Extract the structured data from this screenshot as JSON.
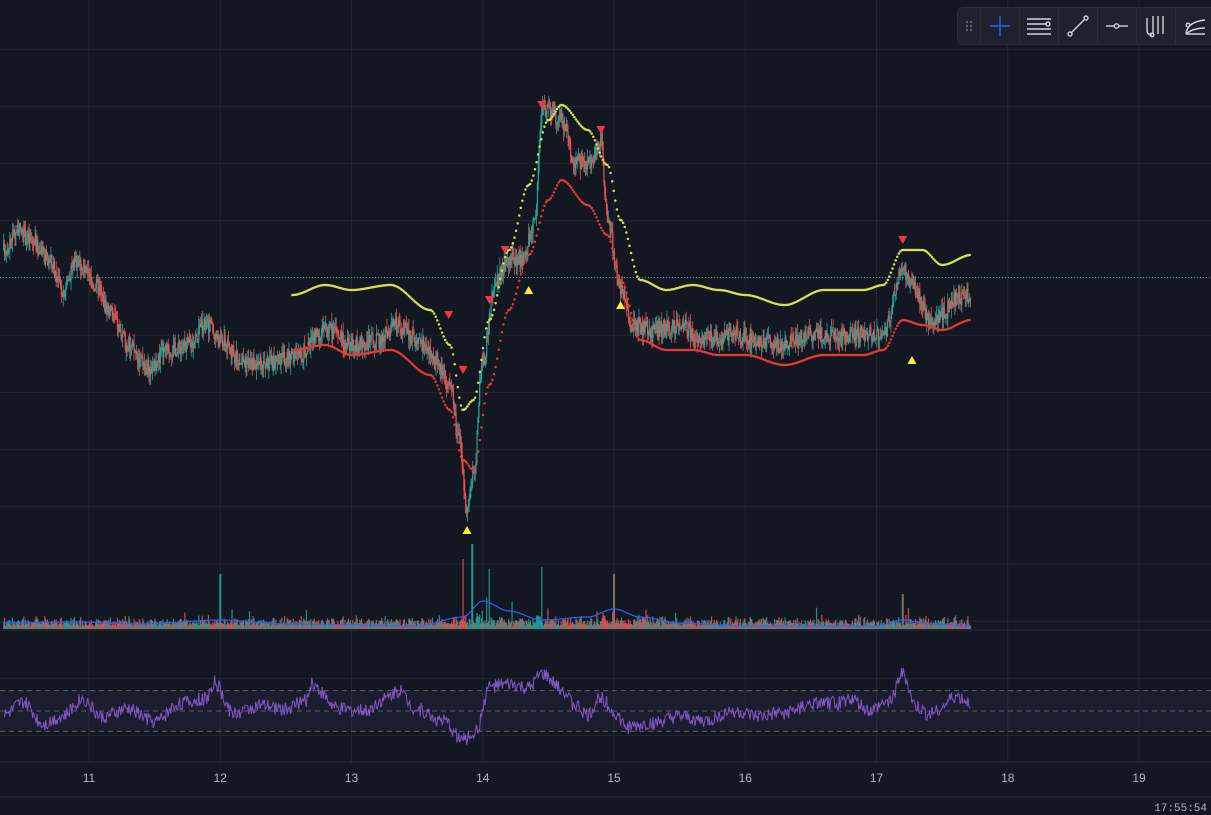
{
  "toolbar": {
    "items": [
      {
        "icon": "grip-dots-icon"
      },
      {
        "icon": "crosshair-icon",
        "active": true
      },
      {
        "icon": "horizontal-lines-icon"
      },
      {
        "icon": "trend-line-icon"
      },
      {
        "icon": "horizontal-ray-icon"
      },
      {
        "icon": "pitchfork-icon"
      },
      {
        "icon": "curve-tool-icon"
      }
    ],
    "active_color": "#2962ff",
    "icon_color": "#d1d4dc"
  },
  "footer": {
    "time_readout": "17:55:54"
  },
  "colors": {
    "background": "#131722",
    "grid": "#232733",
    "candle_up": "#26a69a",
    "candle_down": "#ef5350",
    "upper_band": "#d4e157",
    "lower_band": "#e53935",
    "volume_ma": "#2962ff",
    "rsi_line": "#7e57c2",
    "rsi_band": "#7e57c2",
    "price_line": "#26a69a",
    "signal_sell": "#f23645",
    "signal_buy": "#ffeb3b"
  },
  "chart_data": [
    {
      "type": "candlestick",
      "panel": "price",
      "title": "",
      "x_axis": {
        "type": "date",
        "tick_labels": [
          "11",
          "12",
          "13",
          "14",
          "15",
          "16",
          "17",
          "18",
          "19"
        ],
        "range": [
          10.35,
          19.6
        ]
      },
      "y_range": [
        0,
        100
      ],
      "grid": true,
      "price_path_keypoints": [
        [
          10.35,
          62
        ],
        [
          10.45,
          66
        ],
        [
          10.55,
          64
        ],
        [
          10.7,
          60
        ],
        [
          10.8,
          54
        ],
        [
          10.9,
          60
        ],
        [
          11.05,
          55
        ],
        [
          11.15,
          50
        ],
        [
          11.3,
          43
        ],
        [
          11.45,
          38
        ],
        [
          11.6,
          42
        ],
        [
          11.75,
          43
        ],
        [
          11.9,
          47
        ],
        [
          12.0,
          44
        ],
        [
          12.15,
          40
        ],
        [
          12.3,
          39
        ],
        [
          12.45,
          40
        ],
        [
          12.6,
          41
        ],
        [
          12.8,
          46
        ],
        [
          13.0,
          43
        ],
        [
          13.2,
          44
        ],
        [
          13.35,
          47
        ],
        [
          13.5,
          44
        ],
        [
          13.65,
          40
        ],
        [
          13.75,
          35
        ],
        [
          13.82,
          24
        ],
        [
          13.88,
          10
        ],
        [
          13.93,
          18
        ],
        [
          14.0,
          40
        ],
        [
          14.1,
          56
        ],
        [
          14.2,
          60
        ],
        [
          14.3,
          60
        ],
        [
          14.4,
          68
        ],
        [
          14.45,
          90
        ],
        [
          14.6,
          88
        ],
        [
          14.7,
          80
        ],
        [
          14.8,
          79
        ],
        [
          14.9,
          84
        ],
        [
          14.95,
          68
        ],
        [
          15.05,
          54
        ],
        [
          15.15,
          47
        ],
        [
          15.3,
          46
        ],
        [
          15.5,
          47
        ],
        [
          15.7,
          44
        ],
        [
          15.9,
          45
        ],
        [
          16.1,
          44
        ],
        [
          16.3,
          43
        ],
        [
          16.5,
          45
        ],
        [
          16.7,
          45
        ],
        [
          16.9,
          45
        ],
        [
          17.05,
          45
        ],
        [
          17.2,
          58
        ],
        [
          17.3,
          54
        ],
        [
          17.4,
          48
        ],
        [
          17.5,
          49
        ],
        [
          17.6,
          52
        ],
        [
          17.72,
          53
        ]
      ],
      "upper_band_keypoints": [
        [
          12.55,
          53
        ],
        [
          12.8,
          55
        ],
        [
          13.0,
          54
        ],
        [
          13.3,
          55
        ],
        [
          13.6,
          50
        ],
        [
          13.75,
          43
        ],
        [
          13.85,
          30
        ],
        [
          13.93,
          32
        ],
        [
          14.05,
          48
        ],
        [
          14.2,
          62
        ],
        [
          14.35,
          75
        ],
        [
          14.5,
          88
        ],
        [
          14.6,
          91
        ],
        [
          14.8,
          86
        ],
        [
          14.95,
          79
        ],
        [
          15.05,
          68
        ],
        [
          15.2,
          56
        ],
        [
          15.4,
          54
        ],
        [
          15.6,
          55
        ],
        [
          15.8,
          54
        ],
        [
          16.0,
          53
        ],
        [
          16.3,
          51
        ],
        [
          16.6,
          54
        ],
        [
          16.9,
          54
        ],
        [
          17.05,
          55
        ],
        [
          17.2,
          62
        ],
        [
          17.35,
          62
        ],
        [
          17.5,
          59
        ],
        [
          17.72,
          61
        ]
      ],
      "lower_band_keypoints": [
        [
          12.55,
          42
        ],
        [
          12.8,
          43
        ],
        [
          13.0,
          41
        ],
        [
          13.3,
          42
        ],
        [
          13.6,
          37
        ],
        [
          13.75,
          30
        ],
        [
          13.85,
          20
        ],
        [
          13.93,
          18
        ],
        [
          14.05,
          35
        ],
        [
          14.2,
          50
        ],
        [
          14.35,
          61
        ],
        [
          14.5,
          72
        ],
        [
          14.6,
          76
        ],
        [
          14.8,
          71
        ],
        [
          14.95,
          65
        ],
        [
          15.05,
          56
        ],
        [
          15.2,
          44
        ],
        [
          15.4,
          42
        ],
        [
          15.6,
          42
        ],
        [
          15.8,
          41
        ],
        [
          16.0,
          41
        ],
        [
          16.3,
          39
        ],
        [
          16.6,
          41
        ],
        [
          16.9,
          41
        ],
        [
          17.05,
          42
        ],
        [
          17.2,
          48
        ],
        [
          17.35,
          47
        ],
        [
          17.5,
          46
        ],
        [
          17.72,
          48
        ]
      ],
      "sell_signals": [
        [
          13.74,
          49
        ],
        [
          13.85,
          38
        ],
        [
          14.05,
          52
        ],
        [
          14.17,
          62
        ],
        [
          14.45,
          91
        ],
        [
          14.9,
          86
        ],
        [
          17.2,
          64
        ]
      ],
      "buy_signals": [
        [
          13.88,
          6
        ],
        [
          14.35,
          54
        ],
        [
          15.05,
          51
        ],
        [
          17.27,
          40
        ]
      ],
      "last_price_level": 56.5
    },
    {
      "type": "bar",
      "panel": "volume",
      "series": [
        {
          "values": "per-candle volume"
        }
      ],
      "ma_keypoints": [
        [
          10.35,
          6
        ],
        [
          10.9,
          7
        ],
        [
          11.4,
          5
        ],
        [
          12.0,
          9
        ],
        [
          12.5,
          5
        ],
        [
          13.0,
          4
        ],
        [
          13.5,
          3
        ],
        [
          13.85,
          12
        ],
        [
          14.0,
          28
        ],
        [
          14.2,
          18
        ],
        [
          14.45,
          9
        ],
        [
          14.8,
          12
        ],
        [
          15.0,
          20
        ],
        [
          15.2,
          12
        ],
        [
          15.5,
          6
        ],
        [
          16.0,
          3
        ],
        [
          16.5,
          3
        ],
        [
          17.0,
          3
        ],
        [
          17.2,
          9
        ],
        [
          17.4,
          5
        ],
        [
          17.72,
          3
        ]
      ],
      "spikes": [
        [
          12.0,
          55
        ],
        [
          13.85,
          70
        ],
        [
          13.92,
          85
        ],
        [
          14.05,
          60
        ],
        [
          14.45,
          62
        ],
        [
          15.0,
          55
        ],
        [
          17.2,
          35
        ]
      ]
    },
    {
      "type": "line",
      "panel": "rsi",
      "levels": [
        70,
        50,
        30
      ],
      "rsi_keypoints": [
        [
          10.35,
          46
        ],
        [
          10.5,
          58
        ],
        [
          10.65,
          38
        ],
        [
          10.8,
          45
        ],
        [
          10.95,
          62
        ],
        [
          11.1,
          44
        ],
        [
          11.3,
          52
        ],
        [
          11.5,
          40
        ],
        [
          11.7,
          58
        ],
        [
          11.9,
          62
        ],
        [
          11.95,
          78
        ],
        [
          12.1,
          48
        ],
        [
          12.3,
          55
        ],
        [
          12.5,
          52
        ],
        [
          12.65,
          60
        ],
        [
          12.7,
          76
        ],
        [
          12.9,
          52
        ],
        [
          13.1,
          50
        ],
        [
          13.25,
          62
        ],
        [
          13.35,
          70
        ],
        [
          13.5,
          52
        ],
        [
          13.7,
          40
        ],
        [
          13.85,
          22
        ],
        [
          13.95,
          30
        ],
        [
          14.05,
          74
        ],
        [
          14.2,
          76
        ],
        [
          14.35,
          72
        ],
        [
          14.45,
          86
        ],
        [
          14.6,
          72
        ],
        [
          14.7,
          56
        ],
        [
          14.8,
          46
        ],
        [
          14.9,
          64
        ],
        [
          15.0,
          48
        ],
        [
          15.1,
          34
        ],
        [
          15.3,
          38
        ],
        [
          15.5,
          44
        ],
        [
          15.7,
          40
        ],
        [
          15.9,
          50
        ],
        [
          16.1,
          44
        ],
        [
          16.3,
          48
        ],
        [
          16.5,
          56
        ],
        [
          16.7,
          58
        ],
        [
          16.8,
          62
        ],
        [
          16.95,
          50
        ],
        [
          17.1,
          60
        ],
        [
          17.2,
          86
        ],
        [
          17.3,
          54
        ],
        [
          17.4,
          46
        ],
        [
          17.5,
          54
        ],
        [
          17.6,
          64
        ],
        [
          17.72,
          58
        ]
      ]
    }
  ]
}
